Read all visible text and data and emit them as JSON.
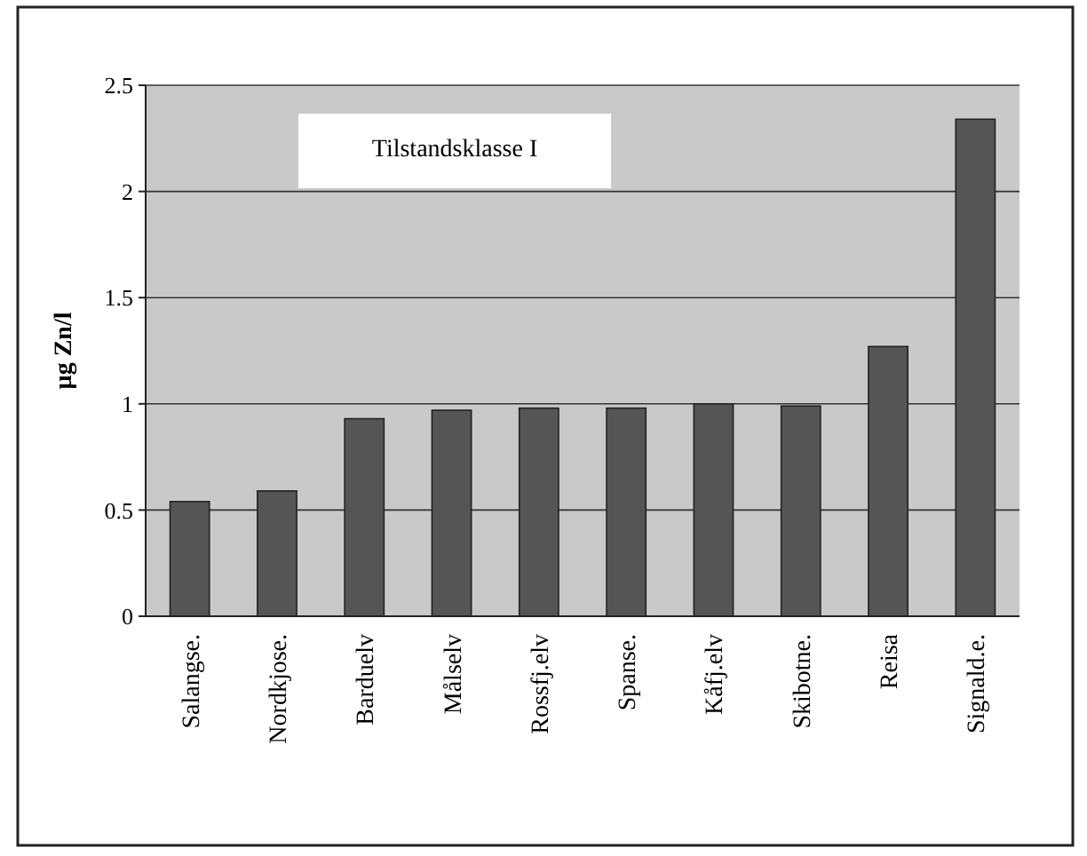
{
  "chart_data": {
    "type": "bar",
    "ylabel": "µg Zn/l",
    "categories": [
      "Salangse.",
      "Nordkjose.",
      "Barduelv",
      "Målselv",
      "Rossfj.elv",
      "Spanse.",
      "Kåfj.elv",
      "Skibotne.",
      "Reisa",
      "Signald.e."
    ],
    "values": [
      0.54,
      0.59,
      0.93,
      0.97,
      0.98,
      0.98,
      1.0,
      0.99,
      1.27,
      2.34
    ],
    "color": "#555555",
    "ylim": [
      0,
      2.5
    ],
    "yticks": [
      0,
      0.5,
      1,
      1.5,
      2,
      2.5
    ],
    "grid": "y",
    "annotations": [
      "Tilstandsklasse I"
    ]
  }
}
